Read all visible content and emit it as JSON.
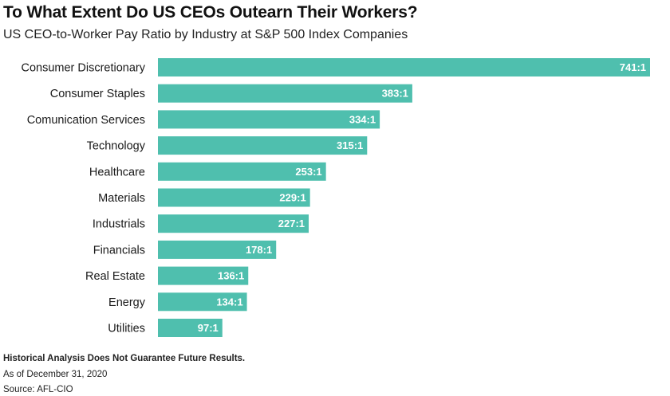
{
  "title": "To What Extent Do US CEOs Outearn Their Workers?",
  "subtitle": "US CEO-to-Worker Pay Ratio by Industry at S&P 500 Index Companies",
  "footer": {
    "disclaimer": "Historical Analysis Does Not Guarantee Future Results.",
    "as_of": "As of December 31, 2020",
    "source": "Source: AFL-CIO"
  },
  "colors": {
    "bar": "#4fbfae",
    "value_text": "#ffffff"
  },
  "chart_data": {
    "type": "bar",
    "orientation": "horizontal",
    "categories": [
      "Consumer Discretionary",
      "Consumer Staples",
      "Comunication Services",
      "Technology",
      "Healthcare",
      "Materials",
      "Industrials",
      "Financials",
      "Real Estate",
      "Energy",
      "Utilities"
    ],
    "values": [
      741,
      383,
      334,
      315,
      253,
      229,
      227,
      178,
      136,
      134,
      97
    ],
    "value_labels": [
      "741:1",
      "383:1",
      "334:1",
      "315:1",
      "253:1",
      "229:1",
      "227:1",
      "178:1",
      "136:1",
      "134:1",
      "97:1"
    ],
    "xlim": [
      0,
      741
    ],
    "grid": false,
    "legend": "none"
  }
}
